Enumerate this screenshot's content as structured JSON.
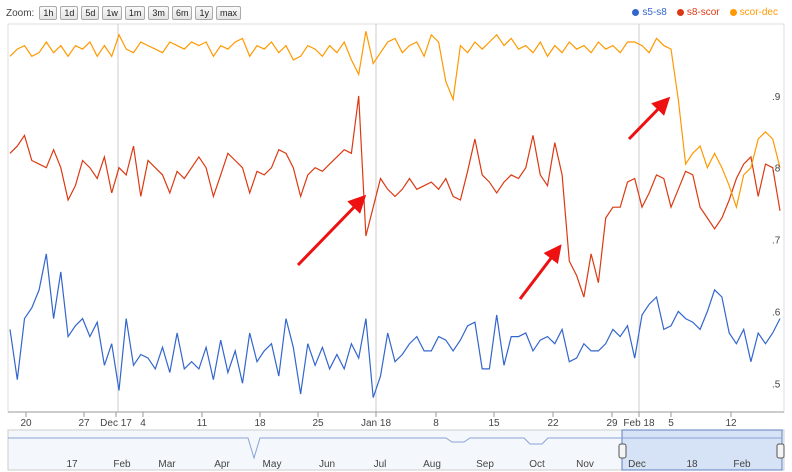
{
  "toolbar": {
    "zoom_label": "Zoom:",
    "buttons": [
      "1h",
      "1d",
      "5d",
      "1w",
      "1m",
      "3m",
      "6m",
      "1y",
      "max"
    ]
  },
  "chart_data": {
    "type": "line",
    "x_tick_labels": [
      "20",
      "27",
      "Dec 17",
      "4",
      "11",
      "18",
      "25",
      "Jan 18",
      "8",
      "15",
      "22",
      "29",
      "Feb 18",
      "5",
      "12"
    ],
    "y_tick_labels": [
      ".9",
      ".8",
      ".7",
      ".6",
      ".5"
    ],
    "ylim": [
      0.46,
      1.0
    ],
    "grid": "vertical month lines",
    "legend_position": "top-right",
    "series": [
      {
        "name": "s5-s8",
        "color": "#3366cc",
        "values": [
          0.575,
          0.505,
          0.59,
          0.605,
          0.63,
          0.68,
          0.59,
          0.655,
          0.565,
          0.58,
          0.59,
          0.565,
          0.585,
          0.525,
          0.555,
          0.49,
          0.59,
          0.525,
          0.54,
          0.535,
          0.52,
          0.55,
          0.515,
          0.57,
          0.52,
          0.53,
          0.52,
          0.55,
          0.505,
          0.56,
          0.515,
          0.545,
          0.5,
          0.57,
          0.53,
          0.545,
          0.555,
          0.51,
          0.59,
          0.55,
          0.485,
          0.555,
          0.525,
          0.55,
          0.52,
          0.54,
          0.52,
          0.555,
          0.535,
          0.59,
          0.48,
          0.51,
          0.57,
          0.53,
          0.54,
          0.555,
          0.565,
          0.545,
          0.545,
          0.565,
          0.56,
          0.545,
          0.56,
          0.58,
          0.585,
          0.52,
          0.52,
          0.595,
          0.525,
          0.565,
          0.565,
          0.57,
          0.545,
          0.56,
          0.565,
          0.555,
          0.575,
          0.53,
          0.535,
          0.555,
          0.545,
          0.545,
          0.555,
          0.575,
          0.565,
          0.58,
          0.535,
          0.595,
          0.61,
          0.62,
          0.575,
          0.58,
          0.6,
          0.59,
          0.585,
          0.575,
          0.6,
          0.63,
          0.62,
          0.57,
          0.555,
          0.575,
          0.53,
          0.57,
          0.555,
          0.57,
          0.59
        ]
      },
      {
        "name": "s8-scor",
        "color": "#dc3912",
        "values": [
          0.82,
          0.83,
          0.845,
          0.81,
          0.805,
          0.8,
          0.825,
          0.8,
          0.755,
          0.775,
          0.81,
          0.8,
          0.785,
          0.815,
          0.765,
          0.8,
          0.79,
          0.83,
          0.76,
          0.81,
          0.8,
          0.79,
          0.765,
          0.795,
          0.785,
          0.8,
          0.815,
          0.8,
          0.76,
          0.79,
          0.82,
          0.81,
          0.8,
          0.765,
          0.795,
          0.79,
          0.8,
          0.825,
          0.82,
          0.8,
          0.76,
          0.79,
          0.8,
          0.795,
          0.805,
          0.815,
          0.825,
          0.82,
          0.9,
          0.705,
          0.745,
          0.785,
          0.77,
          0.76,
          0.77,
          0.785,
          0.77,
          0.775,
          0.78,
          0.77,
          0.785,
          0.76,
          0.755,
          0.795,
          0.84,
          0.79,
          0.78,
          0.765,
          0.78,
          0.79,
          0.785,
          0.8,
          0.845,
          0.79,
          0.775,
          0.835,
          0.79,
          0.67,
          0.65,
          0.62,
          0.68,
          0.64,
          0.73,
          0.745,
          0.745,
          0.78,
          0.785,
          0.745,
          0.765,
          0.79,
          0.785,
          0.745,
          0.77,
          0.795,
          0.79,
          0.745,
          0.73,
          0.715,
          0.73,
          0.755,
          0.785,
          0.805,
          0.815,
          0.76,
          0.805,
          0.8,
          0.74
        ]
      },
      {
        "name": "scor-dec",
        "color": "#ff9900",
        "values": [
          0.955,
          0.965,
          0.97,
          0.955,
          0.96,
          0.975,
          0.96,
          0.97,
          0.955,
          0.97,
          0.965,
          0.975,
          0.955,
          0.97,
          0.955,
          0.985,
          0.965,
          0.96,
          0.975,
          0.97,
          0.965,
          0.96,
          0.975,
          0.97,
          0.965,
          0.975,
          0.97,
          0.975,
          0.955,
          0.97,
          0.965,
          0.975,
          0.98,
          0.955,
          0.97,
          0.965,
          0.975,
          0.96,
          0.97,
          0.95,
          0.955,
          0.97,
          0.965,
          0.955,
          0.97,
          0.96,
          0.975,
          0.95,
          0.93,
          0.99,
          0.945,
          0.96,
          0.975,
          0.98,
          0.96,
          0.97,
          0.975,
          0.955,
          0.985,
          0.975,
          0.92,
          0.895,
          0.97,
          0.96,
          0.975,
          0.965,
          0.975,
          0.985,
          0.97,
          0.98,
          0.965,
          0.97,
          0.96,
          0.975,
          0.955,
          0.97,
          0.96,
          0.975,
          0.965,
          0.97,
          0.96,
          0.975,
          0.965,
          0.97,
          0.96,
          0.975,
          0.975,
          0.97,
          0.96,
          0.98,
          0.97,
          0.965,
          0.895,
          0.805,
          0.82,
          0.83,
          0.8,
          0.82,
          0.8,
          0.775,
          0.745,
          0.79,
          0.8,
          0.84,
          0.85,
          0.84,
          0.8
        ]
      }
    ],
    "annotations": [
      "red arrow",
      "red arrow",
      "red arrow",
      "red arrow"
    ]
  },
  "navigator": {
    "labels": [
      "17",
      "Feb",
      "Mar",
      "Apr",
      "May",
      "Jun",
      "Jul",
      "Aug",
      "Sep",
      "Oct",
      "Nov",
      "Dec",
      "18",
      "Feb"
    ]
  }
}
